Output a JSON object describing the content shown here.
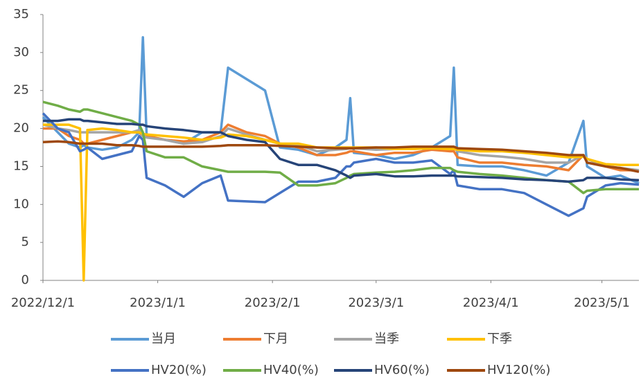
{
  "chart_data": {
    "type": "line",
    "x": [
      "2022/12/1",
      "2022/12/5",
      "2022/12/8",
      "2022/12/11",
      "2022/12/12",
      "2022/12/13",
      "2022/12/17",
      "2022/12/21",
      "2022/12/25",
      "2022/12/27",
      "2022/12/28",
      "2022/12/29",
      "2023/1/3",
      "2023/1/8",
      "2023/1/13",
      "2023/1/18",
      "2023/1/20",
      "2023/1/25",
      "2023/1/30",
      "2023/2/3",
      "2023/2/8",
      "2023/2/13",
      "2023/2/18",
      "2023/2/21",
      "2023/2/22",
      "2023/2/23",
      "2023/3/1",
      "2023/3/6",
      "2023/3/11",
      "2023/3/16",
      "2023/3/21",
      "2023/3/22",
      "2023/3/23",
      "2023/3/29",
      "2023/4/4",
      "2023/4/10",
      "2023/4/16",
      "2023/4/22",
      "2023/4/26",
      "2023/4/27",
      "2023/5/2",
      "2023/5/6",
      "2023/5/11"
    ],
    "xlim": [
      "2022/12/1",
      "2023/5/11"
    ],
    "xticks": [
      "2022/12/1",
      "2023/1/1",
      "2023/2/1",
      "2023/3/1",
      "2023/4/1",
      "2023/5/1"
    ],
    "ylim": [
      0,
      35
    ],
    "yticks": [
      0,
      5,
      10,
      15,
      20,
      25,
      30,
      35
    ],
    "grid": false,
    "series": [
      {
        "name": "当月",
        "color": "#5b9bd5",
        "values": [
          21.5,
          19.5,
          18,
          17.5,
          17.8,
          17.5,
          17.2,
          17.5,
          18.5,
          19.5,
          32,
          19,
          18.5,
          18,
          19.5,
          19.5,
          28,
          26.5,
          25,
          17.5,
          17.2,
          16.5,
          17.5,
          18.5,
          24,
          16.8,
          16.5,
          16,
          16.5,
          17.5,
          19,
          28,
          15.2,
          15,
          15,
          14.5,
          13.8,
          15.5,
          21,
          15,
          13.5,
          13.8,
          12.8
        ]
      },
      {
        "name": "下月",
        "color": "#ed7d31",
        "values": [
          20,
          20,
          19,
          18.5,
          18,
          18,
          18.5,
          19,
          19.5,
          19.5,
          19,
          19,
          18.5,
          18.3,
          18.5,
          19.5,
          20.5,
          19.5,
          19,
          18,
          17.5,
          16.5,
          16.5,
          16.8,
          17,
          17,
          16.5,
          16.8,
          16.8,
          17.2,
          17,
          17,
          16.2,
          15.5,
          15.5,
          15.2,
          15,
          14.5,
          16.5,
          16,
          15,
          14.5,
          14.5
        ]
      },
      {
        "name": "当季",
        "color": "#a5a5a5",
        "values": [
          20.5,
          20,
          19.8,
          19.5,
          19.5,
          19.5,
          19.5,
          19.5,
          19.5,
          19.8,
          19,
          18.8,
          18.5,
          18,
          18.2,
          19,
          20,
          19.2,
          18.5,
          18,
          17.8,
          17,
          17.2,
          17.3,
          17.4,
          17.4,
          17.2,
          17.3,
          17.3,
          17.5,
          17.5,
          17.5,
          17,
          16.5,
          16.3,
          16,
          15.5,
          15.5,
          16.5,
          16,
          15,
          14.8,
          14.5
        ]
      },
      {
        "name": "下季",
        "color": "#ffc000",
        "values": [
          20.5,
          20.5,
          20.5,
          20,
          0,
          19.8,
          20,
          19.8,
          19.5,
          19.5,
          19.3,
          19.2,
          19,
          18.8,
          18.5,
          18.8,
          19.2,
          19,
          18.5,
          18,
          18,
          17.5,
          17.5,
          17.5,
          17.5,
          17.5,
          17.5,
          17.3,
          17.3,
          17.4,
          17.3,
          17.3,
          17.2,
          17,
          17,
          16.8,
          16.5,
          16.2,
          16.3,
          16,
          15.3,
          15.2,
          15.2
        ]
      },
      {
        "name": "HV20(%)",
        "color": "#4472c4",
        "values": [
          22,
          20,
          19.5,
          17,
          17.2,
          17.5,
          16,
          16.5,
          17,
          19,
          18.5,
          13.5,
          12.5,
          11,
          12.8,
          13.8,
          10.5,
          10.4,
          10.3,
          11.5,
          13,
          13,
          13.5,
          15,
          15,
          15.5,
          16,
          15.5,
          15.5,
          15.8,
          14,
          14.5,
          12.5,
          12,
          12,
          11.5,
          10,
          8.5,
          9.5,
          11,
          12.5,
          12.8,
          12.6
        ]
      },
      {
        "name": "HV40(%)",
        "color": "#70ad47",
        "values": [
          23.5,
          23,
          22.5,
          22.2,
          22.5,
          22.5,
          22,
          21.5,
          21,
          20.5,
          19.5,
          17,
          16.2,
          16.2,
          15,
          14.5,
          14.3,
          14.3,
          14.3,
          14.2,
          12.5,
          12.5,
          12.8,
          13.5,
          13.8,
          14,
          14.2,
          14.3,
          14.5,
          14.8,
          14.8,
          14.5,
          14.3,
          14,
          13.8,
          13.5,
          13.2,
          13,
          11.5,
          11.8,
          12,
          12,
          12
        ]
      },
      {
        "name": "HV60(%)",
        "color": "#264478",
        "values": [
          21,
          21,
          21.2,
          21.2,
          21,
          21,
          20.8,
          20.6,
          20.6,
          20.5,
          20.5,
          20.3,
          20,
          19.8,
          19.5,
          19.5,
          19,
          18.5,
          18.2,
          16,
          15.2,
          15.2,
          14.5,
          13.8,
          13.5,
          13.8,
          14,
          13.7,
          13.7,
          13.8,
          13.8,
          13.8,
          13.7,
          13.6,
          13.5,
          13.3,
          13.2,
          13,
          13.2,
          13.5,
          13.5,
          13.3,
          13.2
        ]
      },
      {
        "name": "HV120(%)",
        "color": "#9e480e",
        "values": [
          18.2,
          18.3,
          18.2,
          18,
          18,
          18,
          18,
          17.8,
          17.8,
          17.7,
          17.6,
          17.6,
          17.6,
          17.6,
          17.6,
          17.7,
          17.8,
          17.8,
          17.8,
          17.7,
          17.6,
          17.5,
          17.4,
          17.4,
          17.4,
          17.4,
          17.5,
          17.5,
          17.6,
          17.6,
          17.6,
          17.6,
          17.4,
          17.3,
          17.2,
          17,
          16.8,
          16.5,
          16.5,
          15.5,
          15,
          14.8,
          14.3
        ]
      }
    ]
  }
}
